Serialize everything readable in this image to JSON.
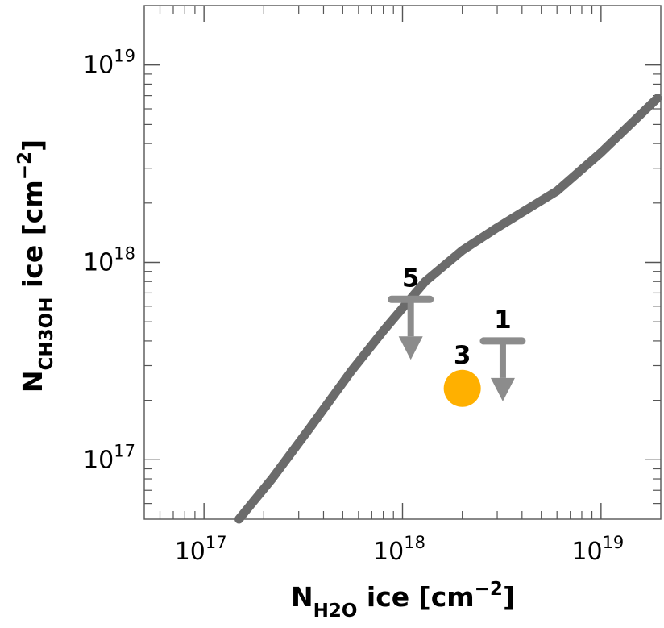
{
  "chart_data": {
    "type": "line",
    "x_scale": "log",
    "y_scale": "log",
    "xlim": [
      5e+16,
      2e+19
    ],
    "ylim": [
      5e+16,
      2e+19
    ],
    "grid": false,
    "xlabel": {
      "main": "N",
      "sub": "H2O",
      "rest": " ice [cm",
      "sup": "−2",
      "close": "]"
    },
    "ylabel": {
      "main": "N",
      "sub": "CH3OH",
      "rest": " ice [cm",
      "sup": "−2",
      "close": "]"
    },
    "x_ticks": [
      {
        "value": 1e+17,
        "base": "10",
        "exp": "17"
      },
      {
        "value": 1e+18,
        "base": "10",
        "exp": "18"
      },
      {
        "value": 1e+19,
        "base": "10",
        "exp": "19"
      }
    ],
    "y_ticks": [
      {
        "value": 1e+17,
        "base": "10",
        "exp": "17"
      },
      {
        "value": 1e+18,
        "base": "10",
        "exp": "18"
      },
      {
        "value": 1e+19,
        "base": "10",
        "exp": "19"
      }
    ],
    "series": [
      {
        "color": "#6b6b6b",
        "x": [
          1.5e+17,
          2.2e+17,
          3.5e+17,
          5.5e+17,
          8e+17,
          1.3e+18,
          2e+18,
          3e+18,
          6e+18,
          1e+19,
          2e+19
        ],
        "y": [
          5e+16,
          8e+16,
          1.5e+17,
          2.8e+17,
          4.5e+17,
          8e+17,
          1.15e+18,
          1.5e+18,
          2.3e+18,
          3.6e+18,
          6.8e+18
        ]
      }
    ],
    "points": [
      {
        "label": "5",
        "type": "upper_limit",
        "x": 1.1e+18,
        "y": 6.5e+17,
        "color": "#8c8c8c"
      },
      {
        "label": "1",
        "type": "upper_limit",
        "x": 3.2e+18,
        "y": 4e+17,
        "color": "#8c8c8c"
      },
      {
        "label": "3",
        "type": "detection",
        "x": 2e+18,
        "y": 2.3e+17,
        "color": "#ffb000"
      }
    ]
  }
}
